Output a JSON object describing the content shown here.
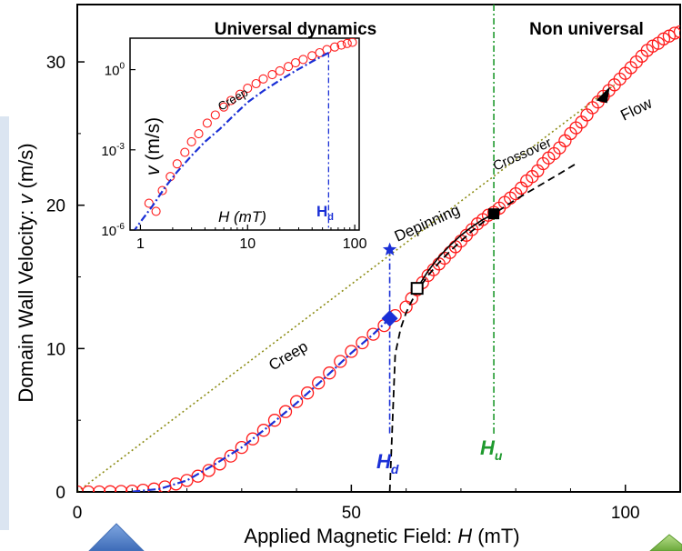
{
  "chart_data": [
    {
      "type": "scatter",
      "xlabel_prefix": "Applied Magnetic Field: ",
      "xlabel_var": "H",
      "xlabel_unit": " (mT)",
      "ylabel_prefix": "Domain Wall Velocity: ",
      "ylabel_var": "v",
      "ylabel_unit": " (m/s)",
      "xlim": [
        0,
        110
      ],
      "ylim": [
        0,
        34
      ],
      "xticks": [
        0,
        50,
        100
      ],
      "yticks": [
        0,
        10,
        20,
        30
      ],
      "grid": false,
      "region_labels": [
        "Universal dynamics",
        "Non universal"
      ],
      "annotations": [
        "Creep",
        "Depinning",
        "Crossover",
        "Flow"
      ],
      "markers": {
        "Hd": {
          "label_var": "H",
          "label_sub": "d",
          "x": 57,
          "color": "#1a2fd6"
        },
        "Hu": {
          "label_var": "H",
          "label_sub": "u",
          "x": 76,
          "color": "#1f9a2e"
        }
      },
      "points": [
        {
          "name": "star",
          "x": 57,
          "y": 16.9
        },
        {
          "name": "diamond",
          "x": 57,
          "y": 12.1
        },
        {
          "name": "open-square",
          "x": 62,
          "y": 14.2
        },
        {
          "name": "filled-square",
          "x": 76,
          "y": 19.4
        },
        {
          "name": "triangle",
          "x": 96,
          "y": 27.7
        }
      ],
      "series": [
        {
          "style": "open-circles",
          "color": "#ff1a1a",
          "x": [
            0,
            2,
            4,
            6,
            8,
            10,
            12,
            14,
            16,
            18,
            20,
            22,
            24,
            26,
            28,
            30,
            32,
            34,
            36,
            38,
            40,
            42,
            44,
            46,
            48,
            50,
            52,
            54,
            56,
            58,
            60,
            61,
            62,
            63,
            64,
            65,
            66,
            67,
            68,
            69,
            70,
            71,
            72,
            73,
            74,
            75,
            76,
            77,
            78,
            79,
            80,
            81,
            82,
            83,
            84,
            85,
            86,
            87,
            88,
            89,
            90,
            91,
            92,
            93,
            94,
            95,
            96,
            97,
            98,
            99,
            100,
            101,
            102,
            103,
            104,
            105,
            106,
            107,
            108,
            109,
            110
          ],
          "y": [
            0,
            0,
            0,
            0.01,
            0.03,
            0.06,
            0.12,
            0.2,
            0.35,
            0.55,
            0.8,
            1.1,
            1.5,
            1.95,
            2.5,
            3.1,
            3.7,
            4.3,
            5.0,
            5.6,
            6.3,
            6.9,
            7.6,
            8.3,
            9.1,
            9.8,
            10.4,
            11.0,
            11.6,
            12.3,
            12.9,
            13.5,
            14.1,
            14.6,
            15.1,
            15.5,
            15.9,
            16.3,
            16.7,
            17.1,
            17.5,
            17.9,
            18.3,
            18.7,
            19.0,
            19.3,
            19.5,
            19.8,
            20.2,
            20.5,
            20.8,
            21.2,
            21.7,
            22.0,
            22.4,
            22.9,
            23.3,
            23.6,
            24.0,
            24.5,
            25.0,
            25.4,
            25.8,
            26.3,
            26.8,
            27.2,
            27.6,
            28.0,
            28.4,
            28.8,
            29.2,
            29.6,
            30.0,
            30.4,
            30.8,
            31.1,
            31.3,
            31.6,
            31.8,
            32.0,
            32.1
          ]
        },
        {
          "style": "blue-dash-dot-fit",
          "color": "#1a2fd6",
          "x": [
            10,
            15,
            20,
            25,
            30,
            35,
            40,
            45,
            50,
            54,
            57
          ],
          "y": [
            0.02,
            0.2,
            0.8,
            1.9,
            3.1,
            4.6,
            6.2,
            7.9,
            9.7,
            11.0,
            12.1
          ]
        },
        {
          "style": "black-dashed-depinning",
          "color": "#000000",
          "x": [
            57,
            58,
            59,
            60,
            61,
            62,
            64,
            66,
            68,
            70,
            72,
            74,
            76,
            80,
            84,
            88,
            91
          ],
          "y": [
            0,
            9.6,
            11.4,
            12.5,
            13.3,
            14.0,
            15.1,
            16.0,
            16.8,
            17.5,
            18.2,
            18.8,
            19.4,
            20.4,
            21.3,
            22.2,
            22.9
          ]
        },
        {
          "style": "black-solid-crossover",
          "color": "#000000",
          "x": [
            62,
            64,
            66,
            68,
            70,
            72,
            74,
            76
          ],
          "y": [
            14.2,
            15.4,
            16.4,
            17.2,
            17.9,
            18.5,
            19.0,
            19.4
          ]
        },
        {
          "style": "olive-dotted-flow-line",
          "color": "#8c8c14",
          "x": [
            0,
            98
          ],
          "y": [
            0,
            28.4
          ]
        }
      ]
    },
    {
      "type": "scatter",
      "xlabel_var": "H",
      "xlabel_unit": " (mT)",
      "ylabel_var": "v",
      "ylabel_unit": " (m/s)",
      "xscale": "log",
      "yscale": "log",
      "xlim": [
        0.8,
        110
      ],
      "ylim": [
        1e-06,
        15
      ],
      "xticks": [
        1,
        10,
        100
      ],
      "xticklabels": [
        "1",
        "10",
        "100"
      ],
      "yticks": [
        1e-06,
        0.001,
        1
      ],
      "yticklabels": [
        {
          "base": "10",
          "exp": "-6"
        },
        {
          "base": "10",
          "exp": "-3"
        },
        {
          "base": "10",
          "exp": "0"
        }
      ],
      "annotation": "Creep",
      "marker_label": {
        "var": "H",
        "sub": "d",
        "x": 57,
        "color": "#1a2fd6"
      },
      "series": [
        {
          "style": "open-circles",
          "color": "#ff1a1a",
          "x": [
            1.2,
            1.4,
            1.6,
            1.9,
            2.2,
            2.6,
            3.0,
            3.5,
            4.2,
            5.0,
            6.0,
            7.0,
            8.5,
            10,
            12,
            14,
            17,
            20,
            24,
            28,
            33,
            40,
            47,
            55,
            65,
            75,
            85,
            95
          ],
          "y": [
            1e-05,
            5e-06,
            3e-05,
            0.0001,
            0.0003,
            0.0008,
            0.002,
            0.004,
            0.01,
            0.02,
            0.04,
            0.07,
            0.12,
            0.2,
            0.3,
            0.45,
            0.65,
            0.9,
            1.3,
            1.8,
            2.4,
            3.3,
            4.3,
            5.6,
            7.0,
            8.3,
            9.5,
            10.5
          ]
        },
        {
          "style": "blue-dash-dot-fit",
          "color": "#1a2fd6",
          "x": [
            0.85,
            1,
            1.3,
            1.7,
            2.2,
            3,
            4,
            5.5,
            7.5,
            10,
            14,
            20,
            28,
            40,
            57
          ],
          "y": [
            8e-07,
            2e-06,
            8e-06,
            4e-05,
            0.00015,
            0.0006,
            0.002,
            0.006,
            0.02,
            0.06,
            0.16,
            0.4,
            0.9,
            2.0,
            4.3
          ]
        }
      ]
    }
  ]
}
